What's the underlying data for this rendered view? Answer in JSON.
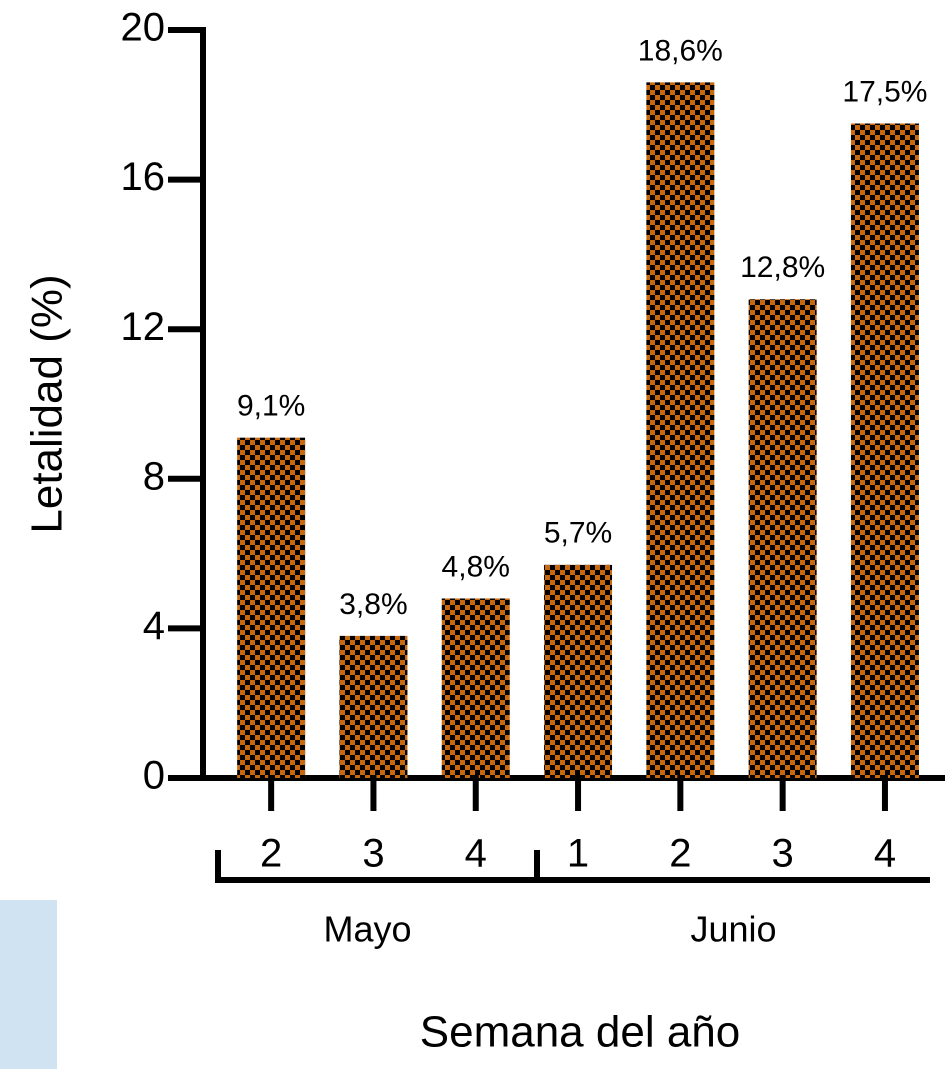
{
  "chart_data": {
    "type": "bar",
    "y_label": "Letalidad (%)",
    "x_label": "Semana del año",
    "categories": [
      "2",
      "3",
      "4",
      "1",
      "2",
      "3",
      "4"
    ],
    "groups": [
      "Mayo",
      "Junio"
    ],
    "values": [
      9.1,
      3.8,
      4.8,
      5.7,
      18.6,
      12.8,
      17.5
    ],
    "value_labels": [
      "9,1%",
      "3,8%",
      "4,8%",
      "5,7%",
      "18,6%",
      "12,8%",
      "17,5%"
    ],
    "color": "#c8690f",
    "ylim": [
      0,
      20
    ],
    "yticks": [
      0,
      4,
      8,
      12,
      16,
      20
    ]
  }
}
